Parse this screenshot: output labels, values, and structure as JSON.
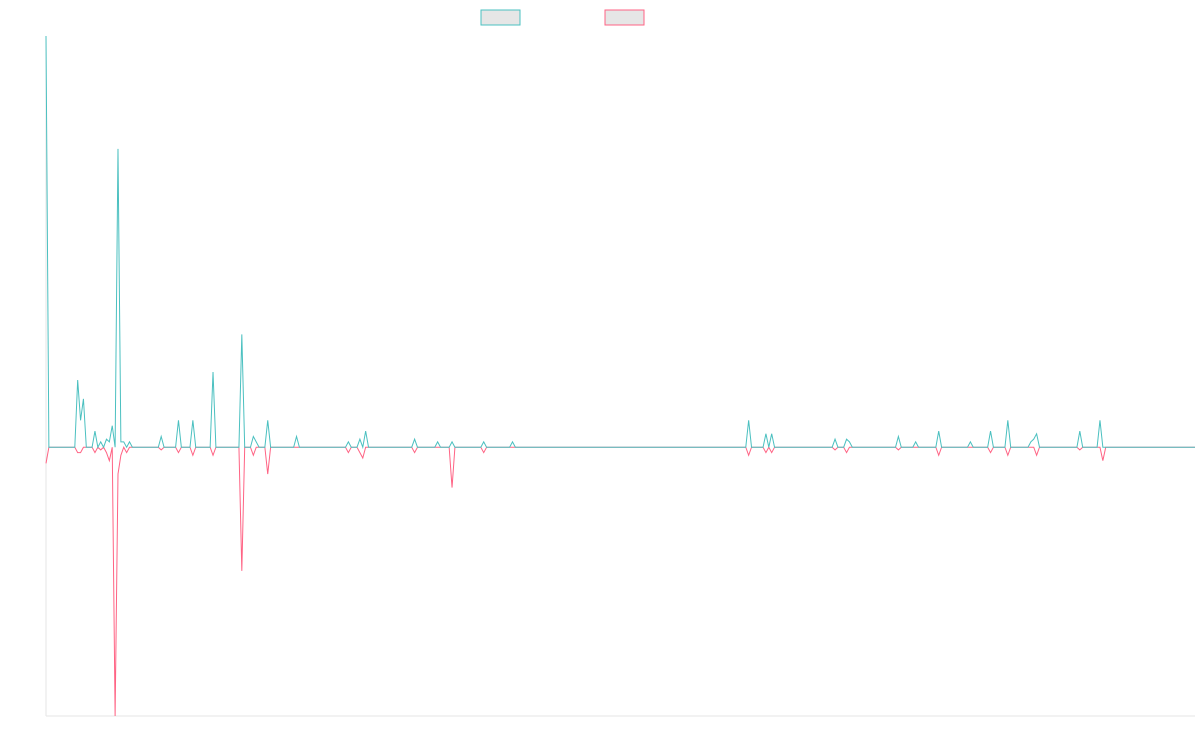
{
  "chart_data": {
    "type": "line",
    "title": "",
    "xlabel": "",
    "ylabel": "",
    "grid": false,
    "legend": "top-center",
    "x_count": 400,
    "ylim": [
      -100,
      153
    ],
    "colors": {
      "positive": "#4bc0c0",
      "negative": "#ff6384",
      "swatch_fill": "#e6e6e6",
      "axis": "#e5e5e5"
    },
    "series": [
      {
        "values": [
          {
            "i": 0,
            "v": 153
          },
          {
            "i": 1,
            "v": 0
          },
          {
            "i": 10,
            "v": 0
          },
          {
            "i": 11,
            "v": 25
          },
          {
            "i": 12,
            "v": 10
          },
          {
            "i": 13,
            "v": 18
          },
          {
            "i": 14,
            "v": 0
          },
          {
            "i": 16,
            "v": 0
          },
          {
            "i": 17,
            "v": 6
          },
          {
            "i": 18,
            "v": 0
          },
          {
            "i": 19,
            "v": 2
          },
          {
            "i": 20,
            "v": 0
          },
          {
            "i": 21,
            "v": 3
          },
          {
            "i": 22,
            "v": 2
          },
          {
            "i": 23,
            "v": 8
          },
          {
            "i": 24,
            "v": 0
          },
          {
            "i": 25,
            "v": 111
          },
          {
            "i": 26,
            "v": 2
          },
          {
            "i": 27,
            "v": 2
          },
          {
            "i": 28,
            "v": 0
          },
          {
            "i": 29,
            "v": 2
          },
          {
            "i": 30,
            "v": 0
          },
          {
            "i": 39,
            "v": 0
          },
          {
            "i": 40,
            "v": 4
          },
          {
            "i": 41,
            "v": 0
          },
          {
            "i": 45,
            "v": 0
          },
          {
            "i": 46,
            "v": 10
          },
          {
            "i": 47,
            "v": 0
          },
          {
            "i": 50,
            "v": 0
          },
          {
            "i": 51,
            "v": 10
          },
          {
            "i": 52,
            "v": 0
          },
          {
            "i": 57,
            "v": 0
          },
          {
            "i": 58,
            "v": 28
          },
          {
            "i": 59,
            "v": 0
          },
          {
            "i": 67,
            "v": 0
          },
          {
            "i": 68,
            "v": 42
          },
          {
            "i": 69,
            "v": 0
          },
          {
            "i": 71,
            "v": 0
          },
          {
            "i": 72,
            "v": 4
          },
          {
            "i": 73,
            "v": 2
          },
          {
            "i": 74,
            "v": 0
          },
          {
            "i": 76,
            "v": 0
          },
          {
            "i": 77,
            "v": 10
          },
          {
            "i": 78,
            "v": 0
          },
          {
            "i": 86,
            "v": 0
          },
          {
            "i": 87,
            "v": 4
          },
          {
            "i": 88,
            "v": 0
          },
          {
            "i": 104,
            "v": 0
          },
          {
            "i": 105,
            "v": 2
          },
          {
            "i": 106,
            "v": 0
          },
          {
            "i": 108,
            "v": 0
          },
          {
            "i": 109,
            "v": 3
          },
          {
            "i": 110,
            "v": 0
          },
          {
            "i": 111,
            "v": 6
          },
          {
            "i": 112,
            "v": 0
          },
          {
            "i": 127,
            "v": 0
          },
          {
            "i": 128,
            "v": 3
          },
          {
            "i": 129,
            "v": 0
          },
          {
            "i": 135,
            "v": 0
          },
          {
            "i": 136,
            "v": 2
          },
          {
            "i": 137,
            "v": 0
          },
          {
            "i": 140,
            "v": 0
          },
          {
            "i": 141,
            "v": 2
          },
          {
            "i": 142,
            "v": 0
          },
          {
            "i": 151,
            "v": 0
          },
          {
            "i": 152,
            "v": 2
          },
          {
            "i": 153,
            "v": 0
          },
          {
            "i": 161,
            "v": 0
          },
          {
            "i": 162,
            "v": 2
          },
          {
            "i": 163,
            "v": 0
          },
          {
            "i": 243,
            "v": 0
          },
          {
            "i": 244,
            "v": 10
          },
          {
            "i": 245,
            "v": 0
          },
          {
            "i": 249,
            "v": 0
          },
          {
            "i": 250,
            "v": 5
          },
          {
            "i": 251,
            "v": 0
          },
          {
            "i": 252,
            "v": 5
          },
          {
            "i": 253,
            "v": 0
          },
          {
            "i": 273,
            "v": 0
          },
          {
            "i": 274,
            "v": 3
          },
          {
            "i": 275,
            "v": 0
          },
          {
            "i": 277,
            "v": 0
          },
          {
            "i": 278,
            "v": 3
          },
          {
            "i": 279,
            "v": 2
          },
          {
            "i": 280,
            "v": 0
          },
          {
            "i": 295,
            "v": 0
          },
          {
            "i": 296,
            "v": 4
          },
          {
            "i": 297,
            "v": 0
          },
          {
            "i": 301,
            "v": 0
          },
          {
            "i": 302,
            "v": 2
          },
          {
            "i": 303,
            "v": 0
          },
          {
            "i": 309,
            "v": 0
          },
          {
            "i": 310,
            "v": 6
          },
          {
            "i": 311,
            "v": 0
          },
          {
            "i": 320,
            "v": 0
          },
          {
            "i": 321,
            "v": 2
          },
          {
            "i": 322,
            "v": 0
          },
          {
            "i": 327,
            "v": 0
          },
          {
            "i": 328,
            "v": 6
          },
          {
            "i": 329,
            "v": 0
          },
          {
            "i": 333,
            "v": 0
          },
          {
            "i": 334,
            "v": 10
          },
          {
            "i": 335,
            "v": 0
          },
          {
            "i": 341,
            "v": 0
          },
          {
            "i": 342,
            "v": 2
          },
          {
            "i": 343,
            "v": 3
          },
          {
            "i": 344,
            "v": 5
          },
          {
            "i": 345,
            "v": 0
          },
          {
            "i": 358,
            "v": 0
          },
          {
            "i": 359,
            "v": 6
          },
          {
            "i": 360,
            "v": 0
          },
          {
            "i": 365,
            "v": 0
          },
          {
            "i": 366,
            "v": 10
          },
          {
            "i": 367,
            "v": 0
          },
          {
            "i": 399,
            "v": 0
          }
        ]
      },
      {
        "values": [
          {
            "i": 0,
            "v": -6
          },
          {
            "i": 1,
            "v": 0
          },
          {
            "i": 10,
            "v": 0
          },
          {
            "i": 11,
            "v": -2
          },
          {
            "i": 12,
            "v": -2
          },
          {
            "i": 13,
            "v": 0
          },
          {
            "i": 16,
            "v": 0
          },
          {
            "i": 17,
            "v": -2
          },
          {
            "i": 18,
            "v": 0
          },
          {
            "i": 19,
            "v": -1
          },
          {
            "i": 20,
            "v": 0
          },
          {
            "i": 21,
            "v": -2
          },
          {
            "i": 22,
            "v": -5
          },
          {
            "i": 23,
            "v": 0
          },
          {
            "i": 24,
            "v": -100
          },
          {
            "i": 25,
            "v": -10
          },
          {
            "i": 26,
            "v": -3
          },
          {
            "i": 27,
            "v": 0
          },
          {
            "i": 28,
            "v": -2
          },
          {
            "i": 29,
            "v": 0
          },
          {
            "i": 39,
            "v": 0
          },
          {
            "i": 40,
            "v": -1
          },
          {
            "i": 41,
            "v": 0
          },
          {
            "i": 45,
            "v": 0
          },
          {
            "i": 46,
            "v": -2
          },
          {
            "i": 47,
            "v": 0
          },
          {
            "i": 50,
            "v": 0
          },
          {
            "i": 51,
            "v": -3
          },
          {
            "i": 52,
            "v": 0
          },
          {
            "i": 57,
            "v": 0
          },
          {
            "i": 58,
            "v": -3
          },
          {
            "i": 59,
            "v": 0
          },
          {
            "i": 67,
            "v": 0
          },
          {
            "i": 68,
            "v": -46
          },
          {
            "i": 69,
            "v": 0
          },
          {
            "i": 71,
            "v": 0
          },
          {
            "i": 72,
            "v": -3
          },
          {
            "i": 73,
            "v": 0
          },
          {
            "i": 76,
            "v": 0
          },
          {
            "i": 77,
            "v": -10
          },
          {
            "i": 78,
            "v": 0
          },
          {
            "i": 104,
            "v": 0
          },
          {
            "i": 105,
            "v": -2
          },
          {
            "i": 106,
            "v": 0
          },
          {
            "i": 108,
            "v": 0
          },
          {
            "i": 109,
            "v": -2
          },
          {
            "i": 110,
            "v": -4
          },
          {
            "i": 111,
            "v": 0
          },
          {
            "i": 127,
            "v": 0
          },
          {
            "i": 128,
            "v": -2
          },
          {
            "i": 129,
            "v": 0
          },
          {
            "i": 140,
            "v": 0
          },
          {
            "i": 141,
            "v": -15
          },
          {
            "i": 142,
            "v": 0
          },
          {
            "i": 151,
            "v": 0
          },
          {
            "i": 152,
            "v": -2
          },
          {
            "i": 153,
            "v": 0
          },
          {
            "i": 243,
            "v": 0
          },
          {
            "i": 244,
            "v": -3
          },
          {
            "i": 245,
            "v": 0
          },
          {
            "i": 249,
            "v": 0
          },
          {
            "i": 250,
            "v": -2
          },
          {
            "i": 251,
            "v": 0
          },
          {
            "i": 252,
            "v": -2
          },
          {
            "i": 253,
            "v": 0
          },
          {
            "i": 273,
            "v": 0
          },
          {
            "i": 274,
            "v": -1
          },
          {
            "i": 275,
            "v": 0
          },
          {
            "i": 277,
            "v": 0
          },
          {
            "i": 278,
            "v": -2
          },
          {
            "i": 279,
            "v": 0
          },
          {
            "i": 295,
            "v": 0
          },
          {
            "i": 296,
            "v": -1
          },
          {
            "i": 297,
            "v": 0
          },
          {
            "i": 309,
            "v": 0
          },
          {
            "i": 310,
            "v": -3
          },
          {
            "i": 311,
            "v": 0
          },
          {
            "i": 327,
            "v": 0
          },
          {
            "i": 328,
            "v": -2
          },
          {
            "i": 329,
            "v": 0
          },
          {
            "i": 333,
            "v": 0
          },
          {
            "i": 334,
            "v": -3
          },
          {
            "i": 335,
            "v": 0
          },
          {
            "i": 343,
            "v": 0
          },
          {
            "i": 344,
            "v": -3
          },
          {
            "i": 345,
            "v": 0
          },
          {
            "i": 358,
            "v": 0
          },
          {
            "i": 359,
            "v": -1
          },
          {
            "i": 360,
            "v": 0
          },
          {
            "i": 366,
            "v": 0
          },
          {
            "i": 367,
            "v": -5
          },
          {
            "i": 368,
            "v": 0
          },
          {
            "i": 399,
            "v": 0
          }
        ]
      }
    ]
  }
}
